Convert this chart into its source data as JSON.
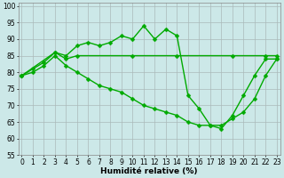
{
  "line1": {
    "x": [
      0,
      1,
      2,
      3,
      4,
      5,
      6,
      7,
      8,
      9,
      10,
      11,
      12,
      13,
      14,
      15,
      16,
      17,
      18,
      19,
      20,
      21,
      22,
      23
    ],
    "y": [
      79,
      81,
      83,
      86,
      85,
      88,
      89,
      88,
      89,
      91,
      90,
      94,
      90,
      93,
      91,
      73,
      69,
      64,
      63,
      67,
      73,
      79,
      84,
      84
    ]
  },
  "line2": {
    "x": [
      0,
      3,
      4,
      5,
      10,
      14,
      19,
      22,
      23
    ],
    "y": [
      79,
      86,
      84,
      85,
      85,
      85,
      85,
      85,
      85
    ]
  },
  "line3": {
    "x": [
      0,
      1,
      2,
      3,
      4,
      5,
      6,
      7,
      8,
      9,
      10,
      11,
      12,
      13,
      14,
      15,
      16,
      17,
      18,
      19,
      20,
      21,
      22,
      23
    ],
    "y": [
      79,
      80,
      82,
      85,
      82,
      80,
      78,
      76,
      75,
      74,
      72,
      70,
      69,
      68,
      67,
      65,
      64,
      64,
      64,
      66,
      68,
      72,
      79,
      84
    ]
  },
  "line_color": "#00aa00",
  "marker": "D",
  "marker_size": 2.5,
  "linewidth": 1.0,
  "xlabel": "Humidité relative (%)",
  "xlabel_fontsize": 6.5,
  "tick_fontsize": 5.5,
  "xlim": [
    -0.3,
    23.3
  ],
  "ylim": [
    55,
    101
  ],
  "yticks": [
    55,
    60,
    65,
    70,
    75,
    80,
    85,
    90,
    95,
    100
  ],
  "xticks": [
    0,
    1,
    2,
    3,
    4,
    5,
    6,
    7,
    8,
    9,
    10,
    11,
    12,
    13,
    14,
    15,
    16,
    17,
    18,
    19,
    20,
    21,
    22,
    23
  ],
  "bg_color": "#cce8e8",
  "grid_color": "#aababa",
  "spine_color": "#888888"
}
